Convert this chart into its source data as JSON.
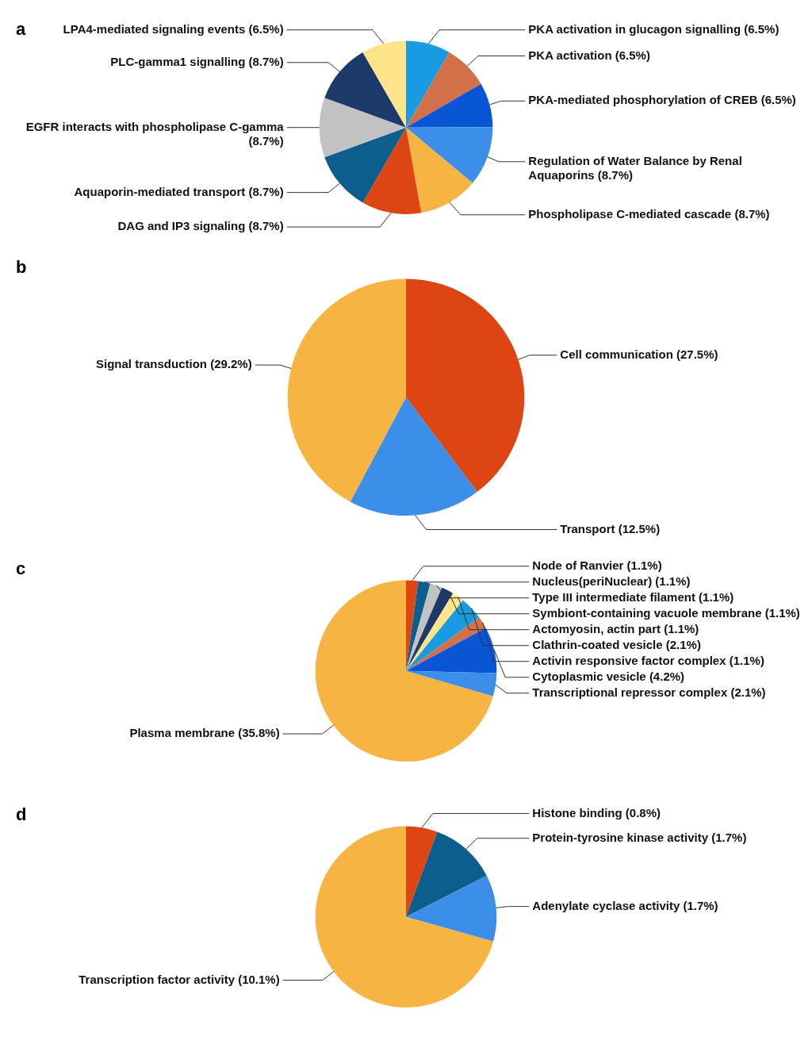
{
  "chart_data": [
    {
      "type": "pie",
      "title": "a",
      "legend": false,
      "categories": [
        "PKA activation in glucagon signalling (6.5%)",
        "PKA activation (6.5%)",
        "PKA-mediated phosphorylation of CREB (6.5%)",
        "Regulation of Water Balance by Renal Aquaporins (8.7%)",
        "Phospholipase C-mediated cascade (8.7%)",
        "DAG and IP3 signaling (8.7%)",
        "Aquaporin-mediated transport (8.7%)",
        "EGFR interacts with phospholipase C-gamma (8.7%)",
        "PLC-gamma1 signalling (8.7%)",
        "LPA4-mediated signaling events (6.5%)"
      ],
      "values": [
        6.5,
        6.5,
        6.5,
        8.7,
        8.7,
        8.7,
        8.7,
        8.7,
        8.7,
        6.5
      ],
      "colors": [
        "#1a9ae0",
        "#d2704a",
        "#0a55d6",
        "#3d8ee8",
        "#f7b443",
        "#dd4512",
        "#0d5e8c",
        "#c2c2c2",
        "#1b3a6b",
        "#fde38a"
      ]
    },
    {
      "type": "pie",
      "title": "b",
      "legend": false,
      "categories": [
        "Cell communication (27.5%)",
        "Transport (12.5%)",
        "Signal transduction (29.2%)"
      ],
      "values": [
        27.5,
        12.5,
        29.2
      ],
      "colors": [
        "#dd4512",
        "#3d8ee8",
        "#f7b443"
      ]
    },
    {
      "type": "pie",
      "title": "c",
      "legend": false,
      "categories": [
        "Node of Ranvier (1.1%)",
        "Nucleus(periNuclear) (1.1%)",
        "Type III intermediate filament (1.1%)",
        "Symbiont-containing vacuole membrane (1.1%)",
        "Actomyosin, actin part (1.1%)",
        "Clathrin-coated vesicle (2.1%)",
        "Activin responsive factor complex (1.1%)",
        "Cytoplasmic vesicle (4.2%)",
        "Transcriptional repressor complex (2.1%)",
        "Plasma membrane (35.8%)"
      ],
      "values": [
        1.1,
        1.1,
        1.1,
        1.1,
        1.1,
        2.1,
        1.1,
        4.2,
        2.1,
        35.8
      ],
      "colors": [
        "#dd4512",
        "#0d5e8c",
        "#c2c2c2",
        "#1b3a6b",
        "#fde38a",
        "#1a9ae0",
        "#d2704a",
        "#0a55d6",
        "#3d8ee8",
        "#f7b443"
      ]
    },
    {
      "type": "pie",
      "title": "d",
      "legend": false,
      "categories": [
        "Histone binding (0.8%)",
        "Protein-tyrosine kinase activity (1.7%)",
        "Adenylate cyclase activity (1.7%)",
        "Transcription factor activity (10.1%)"
      ],
      "values": [
        0.8,
        1.7,
        1.7,
        10.1
      ],
      "colors": [
        "#dd4512",
        "#0d5e8c",
        "#3d8ee8",
        "#f7b443"
      ]
    }
  ]
}
